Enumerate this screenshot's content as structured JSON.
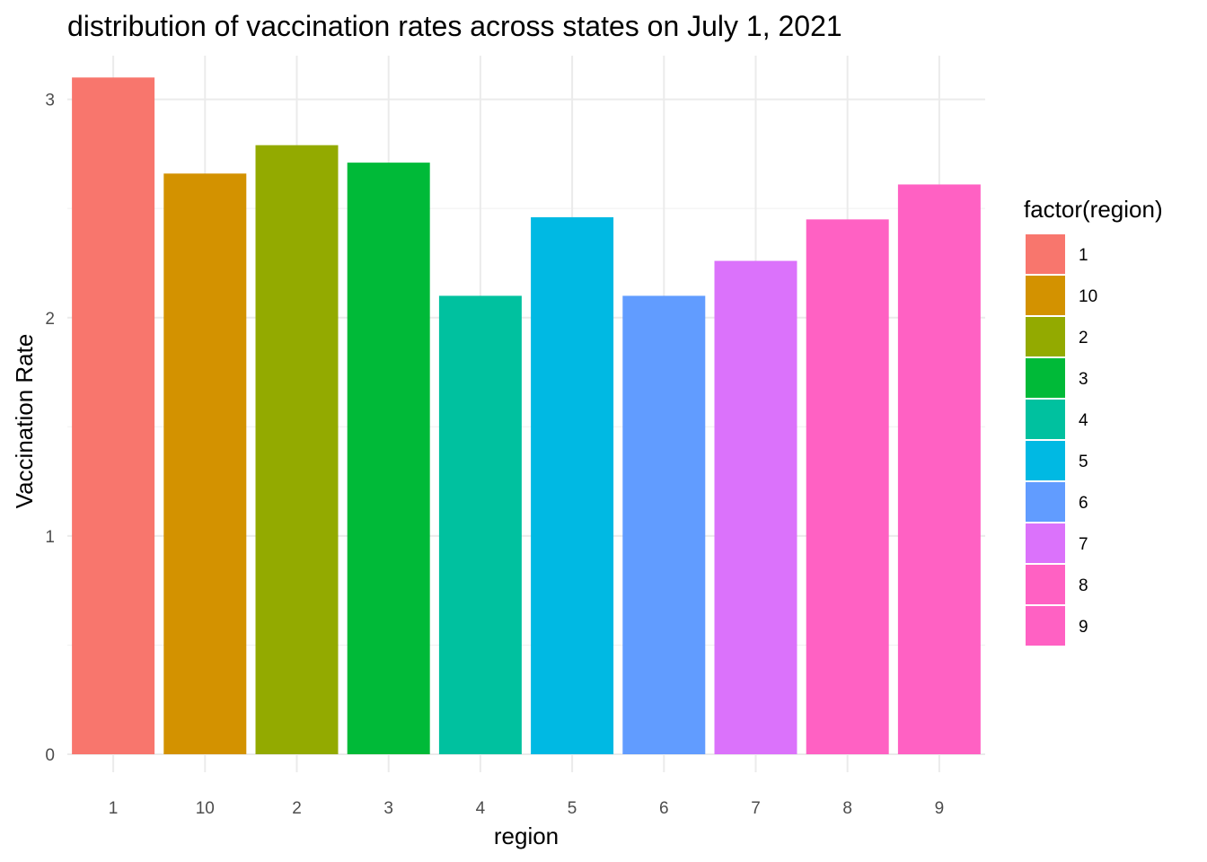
{
  "chart_data": {
    "type": "bar",
    "title": "distribution of vaccination rates across states on July 1, 2021",
    "xlabel": "region",
    "ylabel": "Vaccination Rate",
    "categories": [
      "1",
      "10",
      "2",
      "3",
      "4",
      "5",
      "6",
      "7",
      "8",
      "9"
    ],
    "values": [
      3.1,
      2.66,
      2.79,
      2.71,
      2.1,
      2.46,
      2.1,
      2.26,
      2.45,
      2.61
    ],
    "colors": [
      "#F8766D",
      "#D39200",
      "#93AA00",
      "#00BA38",
      "#00C19F",
      "#00B9E3",
      "#619CFF",
      "#DB72FB",
      "#FF61C3",
      "#FF61C3"
    ],
    "ylim": [
      0,
      3.2
    ],
    "yticks": [
      0,
      1,
      2,
      3
    ],
    "grid": true,
    "legend": {
      "title": "factor(region)",
      "position": "right",
      "entries": [
        "1",
        "10",
        "2",
        "3",
        "4",
        "5",
        "6",
        "7",
        "8",
        "9"
      ]
    }
  }
}
